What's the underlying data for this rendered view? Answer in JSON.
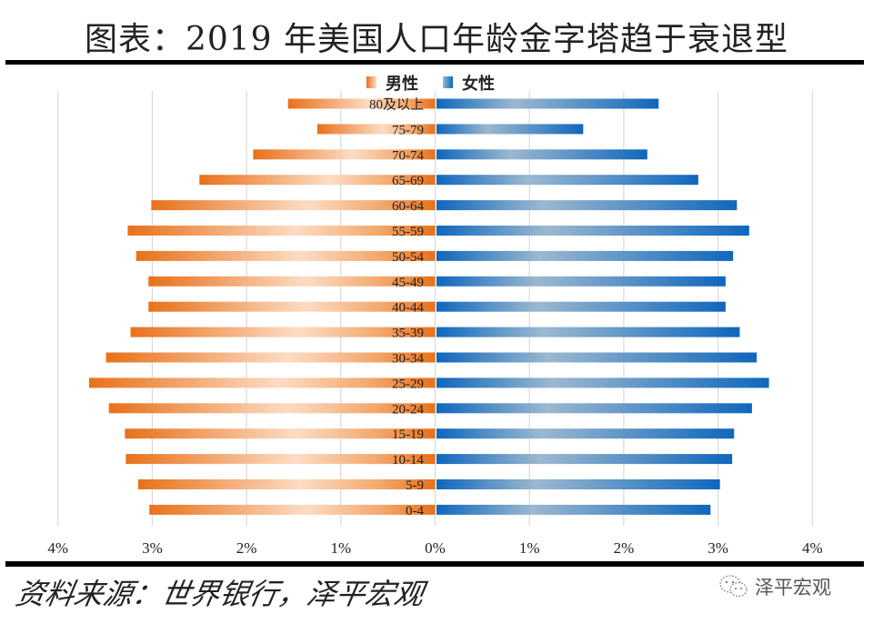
{
  "title": "图表：2019 年美国人口年龄金字塔趋于衰退型",
  "source": "资料来源：世界银行，泽平宏观",
  "watermark": {
    "icon": "wechat-icon",
    "text": "泽平宏观"
  },
  "colors": {
    "male_dark": "#e8711a",
    "male_light": "#fcdcc4",
    "female_dark": "#0f67bd",
    "female_light": "#9bb8cf",
    "grid": "#d9d9d9"
  },
  "chart_data": {
    "type": "bar",
    "orientation": "horizontal-population-pyramid",
    "title": "图表：2019 年美国人口年龄金字塔趋于衰退型",
    "categories": [
      "80及以上",
      "75-79",
      "70-74",
      "65-69",
      "60-64",
      "55-59",
      "50-54",
      "45-49",
      "40-44",
      "35-39",
      "30-34",
      "25-29",
      "20-24",
      "15-19",
      "10-14",
      "5-9",
      "0-4"
    ],
    "series": [
      {
        "name": "男性",
        "side": "left",
        "values": [
          1.56,
          1.25,
          1.93,
          2.5,
          3.01,
          3.26,
          3.17,
          3.04,
          3.04,
          3.23,
          3.49,
          3.67,
          3.46,
          3.29,
          3.28,
          3.15,
          3.03
        ]
      },
      {
        "name": "女性",
        "side": "right",
        "values": [
          2.37,
          1.57,
          2.25,
          2.79,
          3.2,
          3.33,
          3.16,
          3.08,
          3.08,
          3.23,
          3.41,
          3.54,
          3.36,
          3.17,
          3.15,
          3.02,
          2.92
        ]
      }
    ],
    "unit": "%",
    "xlim": [
      -4,
      4
    ],
    "xticks": [
      -4,
      -3,
      -2,
      -1,
      0,
      1,
      2,
      3,
      4
    ],
    "xtick_labels": [
      "4%",
      "3%",
      "2%",
      "1%",
      "0%",
      "1%",
      "2%",
      "3%",
      "4%"
    ],
    "xlabel": "",
    "ylabel": "",
    "grid": "vertical",
    "legend": {
      "position": "top-center",
      "entries": [
        "男性",
        "女性"
      ]
    }
  }
}
